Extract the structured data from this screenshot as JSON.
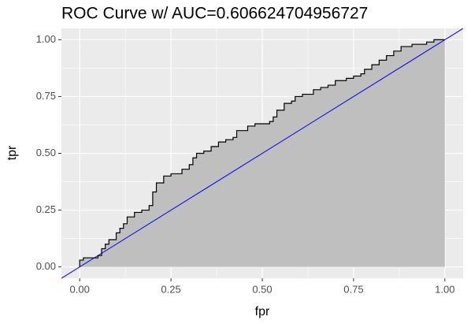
{
  "chart_data": {
    "type": "step",
    "title": "ROC Curve w/ AUC=0.606624704956727",
    "x_label": "fpr",
    "y_label": "tpr",
    "x": [
      0.0,
      0.0,
      0.01,
      0.05,
      0.06,
      0.07,
      0.08,
      0.1,
      0.11,
      0.12,
      0.13,
      0.15,
      0.17,
      0.19,
      0.2,
      0.21,
      0.23,
      0.25,
      0.28,
      0.3,
      0.31,
      0.32,
      0.34,
      0.36,
      0.38,
      0.4,
      0.42,
      0.43,
      0.46,
      0.48,
      0.52,
      0.53,
      0.54,
      0.56,
      0.58,
      0.59,
      0.61,
      0.64,
      0.66,
      0.68,
      0.7,
      0.73,
      0.75,
      0.77,
      0.78,
      0.8,
      0.82,
      0.84,
      0.86,
      0.88,
      0.91,
      0.95,
      0.97,
      1.0
    ],
    "values": [
      0.0,
      0.03,
      0.04,
      0.05,
      0.08,
      0.1,
      0.12,
      0.15,
      0.17,
      0.19,
      0.22,
      0.24,
      0.25,
      0.27,
      0.33,
      0.37,
      0.4,
      0.41,
      0.43,
      0.45,
      0.48,
      0.5,
      0.51,
      0.53,
      0.55,
      0.56,
      0.57,
      0.6,
      0.62,
      0.63,
      0.64,
      0.66,
      0.69,
      0.72,
      0.73,
      0.75,
      0.76,
      0.78,
      0.79,
      0.8,
      0.82,
      0.83,
      0.84,
      0.85,
      0.87,
      0.89,
      0.91,
      0.93,
      0.95,
      0.97,
      0.98,
      0.99,
      1.0,
      1.0
    ],
    "color": "#000000",
    "area_color": "#bfbfbf",
    "abline": {
      "slope": 1,
      "intercept": 0,
      "color": "#0000ff"
    },
    "xlim": [
      -0.05,
      1.05
    ],
    "ylim": [
      -0.05,
      1.05
    ],
    "xticks": [
      {
        "value": 0,
        "label": "0.00"
      },
      {
        "value": 0.25,
        "label": "0.25"
      },
      {
        "value": 0.5,
        "label": "0.50"
      },
      {
        "value": 0.75,
        "label": "0.75"
      },
      {
        "value": 1,
        "label": "1.00"
      }
    ],
    "yticks": [
      {
        "value": 0,
        "label": "0.00"
      },
      {
        "value": 0.25,
        "label": "0.25"
      },
      {
        "value": 0.5,
        "label": "0.50"
      },
      {
        "value": 0.75,
        "label": "0.75"
      },
      {
        "value": 1,
        "label": "1.00"
      }
    ],
    "grid": true
  }
}
